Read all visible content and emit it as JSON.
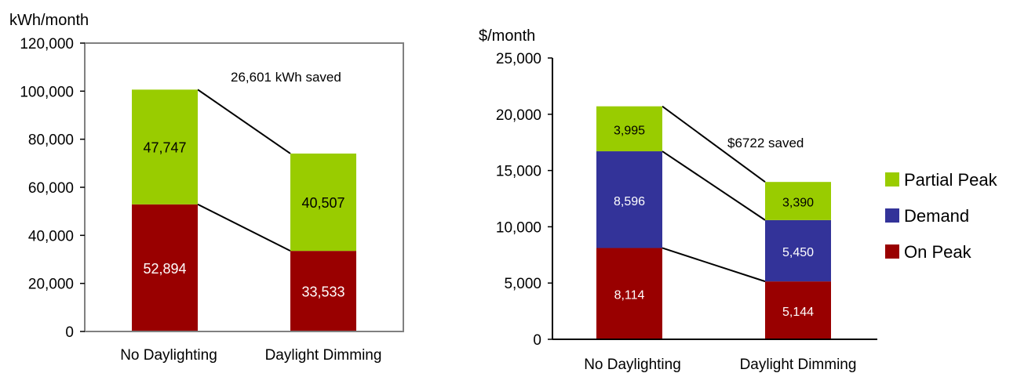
{
  "colors": {
    "on_peak": "#990000",
    "demand": "#333399",
    "partial_peak": "#99cc00",
    "axis": "#808080",
    "connector": "#000000"
  },
  "chart_data": [
    {
      "type": "bar",
      "stacked": true,
      "ylabel": "kWh/month",
      "ylim": [
        0,
        120000
      ],
      "ytick_labels": [
        "0",
        "20,000",
        "40,000",
        "60,000",
        "80,000",
        "100,000",
        "120,000"
      ],
      "yticks": [
        0,
        20000,
        40000,
        60000,
        80000,
        100000,
        120000
      ],
      "categories": [
        "No Daylighting",
        "Daylight Dimming"
      ],
      "series": [
        {
          "name": "On Peak",
          "color": "#990000",
          "values": [
            52894,
            33533
          ],
          "labels": [
            "52,894",
            "33,533"
          ],
          "label_color": "#ffffff"
        },
        {
          "name": "Partial Peak",
          "color": "#99cc00",
          "values": [
            47747,
            40507
          ],
          "labels": [
            "47,747",
            "40,507"
          ],
          "label_color": "#000000"
        }
      ],
      "annotation": "26,601 kWh saved",
      "plot_border": true,
      "grid": false
    },
    {
      "type": "bar",
      "stacked": true,
      "ylabel": "$/month",
      "ylim": [
        0,
        25000
      ],
      "ytick_labels": [
        "0",
        "5,000",
        "10,000",
        "15,000",
        "20,000",
        "25,000"
      ],
      "yticks": [
        0,
        5000,
        10000,
        15000,
        20000,
        25000
      ],
      "categories": [
        "No Daylighting",
        "Daylight Dimming"
      ],
      "series": [
        {
          "name": "On Peak",
          "color": "#990000",
          "values": [
            8114,
            5144
          ],
          "labels": [
            "8,114",
            "5,144"
          ],
          "label_color": "#ffffff"
        },
        {
          "name": "Demand",
          "color": "#333399",
          "values": [
            8596,
            5450
          ],
          "labels": [
            "8,596",
            "5,450"
          ],
          "label_color": "#ffffff"
        },
        {
          "name": "Partial Peak",
          "color": "#99cc00",
          "values": [
            3995,
            3390
          ],
          "labels": [
            "3,995",
            "3,390"
          ],
          "label_color": "#000000"
        }
      ],
      "annotation": "$6722 saved",
      "legend": {
        "position": "right",
        "entries": [
          "Partial Peak",
          "Demand",
          "On Peak"
        ]
      },
      "plot_border": false,
      "grid": false
    }
  ]
}
